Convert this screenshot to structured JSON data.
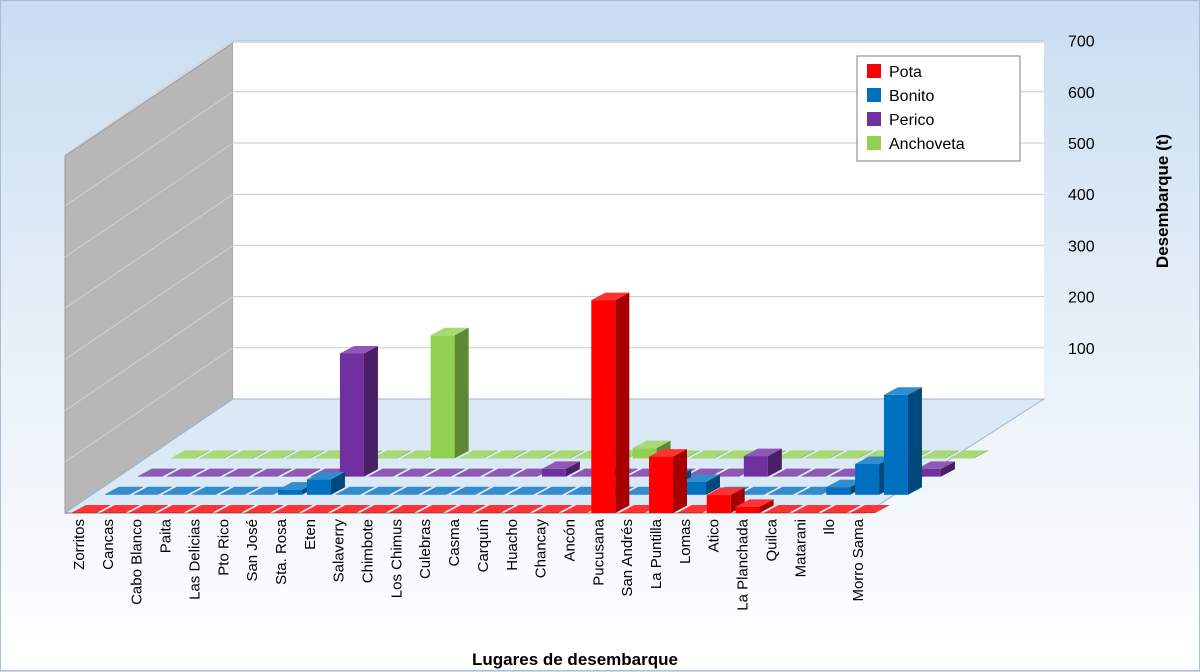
{
  "chart_data": {
    "type": "bar",
    "title": "",
    "xlabel": "Lugares de desembarque",
    "ylabel": "Desembarque (t)",
    "ylim": [
      0,
      700
    ],
    "yticks": [
      100,
      200,
      300,
      400,
      500,
      600,
      700
    ],
    "grid": true,
    "legend_position": "top-right",
    "categories": [
      "Zorritos",
      "Cancas",
      "Cabo Blanco",
      "Paita",
      "Las Delicias",
      "Pto Rico",
      "San José",
      "Sta. Rosa",
      "Eten",
      "Salaverry",
      "Chimbote",
      "Los Chimus",
      "Culebras",
      "Casma",
      "Carquín",
      "Huacho",
      "Chancay",
      "Ancón",
      "Pucusana",
      "San Andrés",
      "La Puntilla",
      "Lomas",
      "Atico",
      "La Planchada",
      "Quilca",
      "Matarani",
      "Ilo",
      "Morro Sama"
    ],
    "series": [
      {
        "name": "Pota",
        "color": "#ff0000",
        "values": [
          0,
          0,
          0,
          0,
          0,
          0,
          0,
          0,
          0,
          0,
          0,
          0,
          0,
          0,
          0,
          0,
          0,
          0,
          415,
          0,
          110,
          0,
          35,
          12,
          0,
          0,
          0,
          0
        ]
      },
      {
        "name": "Bonito",
        "color": "#0070c0",
        "values": [
          0,
          0,
          0,
          0,
          0,
          0,
          10,
          30,
          0,
          0,
          0,
          0,
          0,
          0,
          0,
          0,
          0,
          0,
          0,
          35,
          25,
          0,
          0,
          0,
          0,
          15,
          60,
          195
        ]
      },
      {
        "name": "Perico",
        "color": "#7030a0",
        "values": [
          0,
          0,
          0,
          0,
          0,
          0,
          0,
          240,
          0,
          0,
          0,
          0,
          0,
          0,
          15,
          0,
          0,
          0,
          0,
          0,
          0,
          40,
          0,
          0,
          0,
          0,
          0,
          15
        ]
      },
      {
        "name": "Anchoveta",
        "color": "#92d050",
        "values": [
          0,
          0,
          0,
          0,
          0,
          0,
          0,
          0,
          0,
          240,
          0,
          0,
          0,
          0,
          0,
          0,
          20,
          0,
          0,
          0,
          0,
          0,
          0,
          0,
          0,
          0,
          0,
          0
        ]
      }
    ]
  }
}
